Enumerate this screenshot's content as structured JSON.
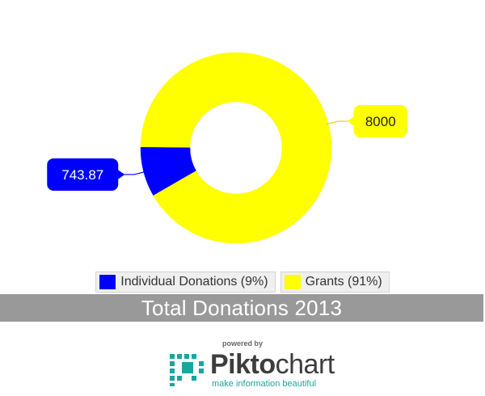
{
  "chart_data": {
    "type": "pie",
    "variant": "donut",
    "title": "Total Donations 2013",
    "slices": [
      {
        "label": "Individual Donations",
        "value": 743.87,
        "percent_label": "(9%)",
        "color": "#0000ff",
        "value_label": "743.87"
      },
      {
        "label": "Grants",
        "value": 8000,
        "percent_label": "(91%)",
        "color": "#ffff00",
        "value_label": "8000"
      }
    ],
    "legend_position": "bottom"
  },
  "legend": [
    {
      "text": "Individual Donations (9%)",
      "color": "#0000ff"
    },
    {
      "text": "Grants (91%)",
      "color": "#ffff00"
    }
  ],
  "footer": {
    "powered_by": "powered by",
    "brand_prefix": "Pikto",
    "brand_suffix": "chart",
    "tagline": "make information beautiful",
    "brand_color": "#19a5a0"
  }
}
